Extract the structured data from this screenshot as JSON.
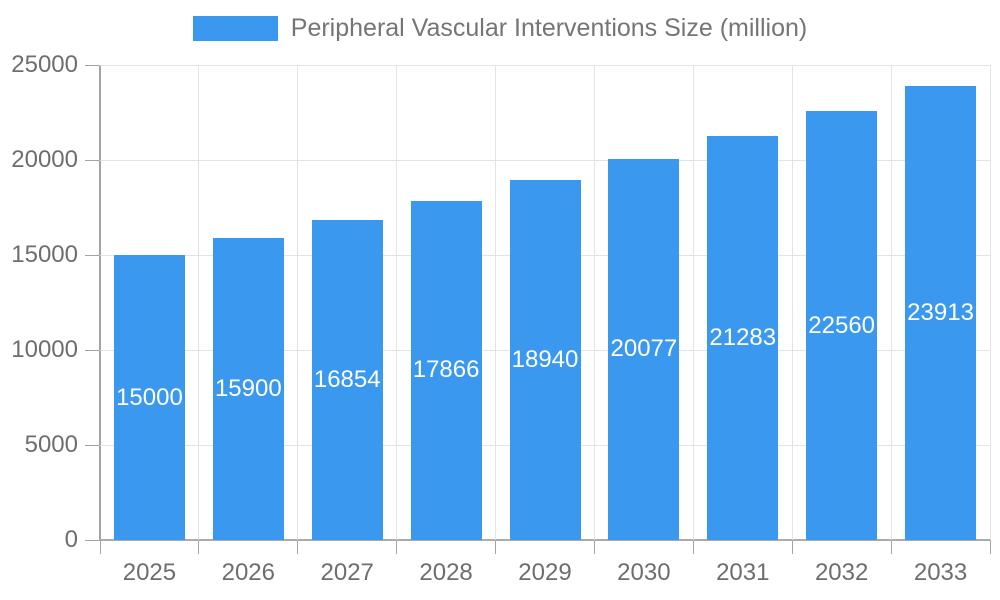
{
  "legend": {
    "label": "Peripheral Vascular Interventions Size (million)",
    "swatch_color": "#3a99ee"
  },
  "chart_data": {
    "type": "bar",
    "title": "Peripheral Vascular Interventions Size (million)",
    "categories": [
      "2025",
      "2026",
      "2027",
      "2028",
      "2029",
      "2030",
      "2031",
      "2032",
      "2033"
    ],
    "values": [
      15000,
      15900,
      16854,
      17866,
      18940,
      20077,
      21283,
      22560,
      23913
    ],
    "xlabel": "",
    "ylabel": "",
    "ylim": [
      0,
      25000
    ],
    "yticks": [
      0,
      5000,
      10000,
      15000,
      20000,
      25000
    ],
    "grid": true,
    "legend_position": "top",
    "value_labels": "inside-center",
    "colors": {
      "bar": "#3a99ee",
      "value_label_text": "#ffffff",
      "gridline": "#e3e3e3",
      "axis_line": "#a3a3a3",
      "tick_text": "#6e6e6e",
      "legend_text": "#757575",
      "background": "#ffffff"
    }
  }
}
